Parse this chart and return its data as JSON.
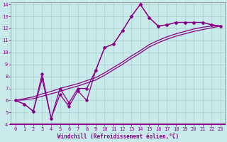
{
  "xlabel": "Windchill (Refroidissement éolien,°C)",
  "background_color": "#c8eaea",
  "grid_color": "#aacece",
  "line_color": "#880088",
  "xlim": [
    -0.5,
    23.5
  ],
  "ylim": [
    4,
    14.2
  ],
  "xticks": [
    0,
    1,
    2,
    3,
    4,
    5,
    6,
    7,
    8,
    9,
    10,
    11,
    12,
    13,
    14,
    15,
    16,
    17,
    18,
    19,
    20,
    21,
    22,
    23
  ],
  "yticks": [
    4,
    5,
    6,
    7,
    8,
    9,
    10,
    11,
    12,
    13,
    14
  ],
  "series_with_markers": [
    [
      6.0,
      5.7,
      5.1,
      8.2,
      4.5,
      6.5,
      5.5,
      6.8,
      6.0,
      8.5,
      10.4,
      10.7,
      11.8,
      13.0,
      14.0,
      12.9,
      12.2,
      12.3,
      12.5,
      12.5,
      12.5,
      12.5,
      12.3,
      12.2
    ],
    [
      6.0,
      5.7,
      5.1,
      7.8,
      4.5,
      7.0,
      5.8,
      7.0,
      7.0,
      8.5,
      10.4,
      10.7,
      11.8,
      13.0,
      14.0,
      12.9,
      12.2,
      12.3,
      12.5,
      12.5,
      12.5,
      12.5,
      12.3,
      12.2
    ]
  ],
  "series_smooth": [
    [
      6.0,
      6.15,
      6.3,
      6.55,
      6.75,
      7.0,
      7.2,
      7.4,
      7.65,
      7.9,
      8.3,
      8.75,
      9.2,
      9.7,
      10.15,
      10.65,
      11.0,
      11.3,
      11.55,
      11.75,
      11.95,
      12.1,
      12.2,
      12.2
    ],
    [
      6.0,
      6.05,
      6.15,
      6.35,
      6.55,
      6.75,
      7.0,
      7.2,
      7.45,
      7.7,
      8.1,
      8.55,
      9.0,
      9.5,
      9.95,
      10.45,
      10.8,
      11.1,
      11.35,
      11.55,
      11.75,
      11.9,
      12.05,
      12.2
    ]
  ]
}
